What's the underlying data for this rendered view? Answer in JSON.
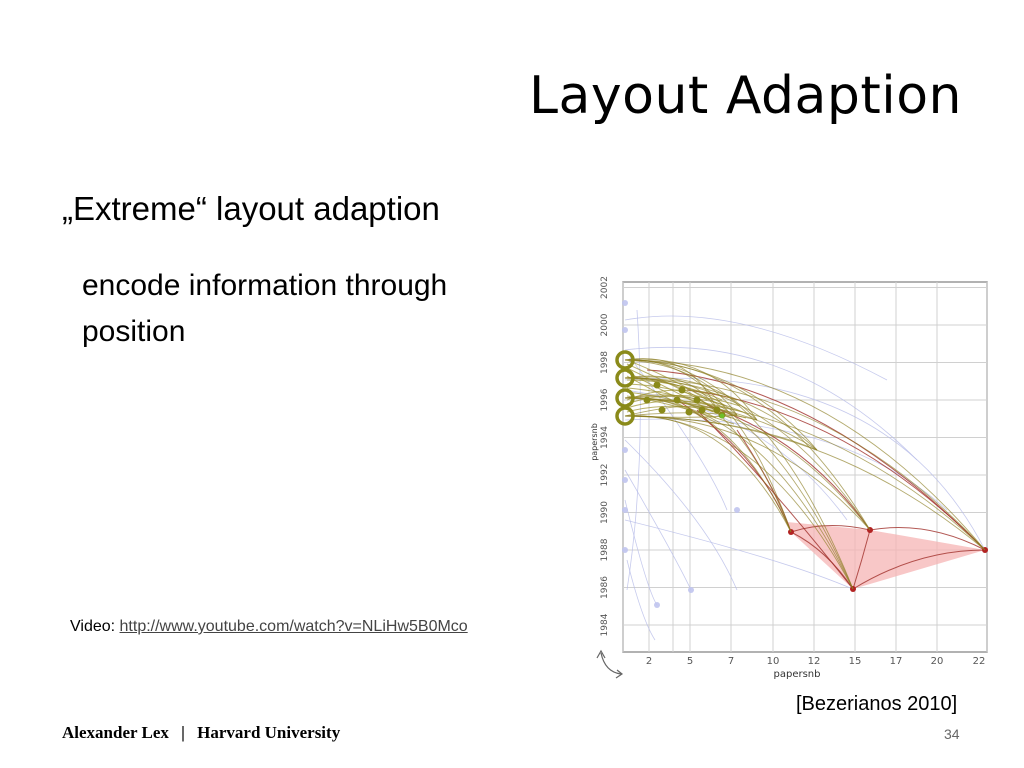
{
  "slide": {
    "title": "Layout Adaption",
    "bullet_main": "„Extreme“ layout adaption",
    "bullet_sub": "encode information through position",
    "video_label": "Video:",
    "video_url": "http://www.youtube.com/watch?v=NLiHw5B0Mco",
    "citation": "[Bezerianos 2010]",
    "footer_author": "Alexander Lex",
    "footer_separator": "|",
    "footer_institution": "Harvard University",
    "page_number": "34"
  },
  "figure": {
    "ylabel": "papersnb",
    "xlabel": "papersnb",
    "y_ticks": [
      "1984",
      "1986",
      "1988",
      "1990",
      "1992",
      "1994",
      "1996",
      "1998",
      "2000",
      "2002"
    ],
    "x_ticks": [
      "2",
      "5",
      "7",
      "10",
      "12",
      "15",
      "17",
      "20",
      "22"
    ]
  },
  "colors": {
    "olive": "#8a8a1a",
    "red": "#b22222",
    "pink": "#f2a0a0",
    "blue": "#a8b0e0",
    "grid": "#c8c8c8"
  }
}
